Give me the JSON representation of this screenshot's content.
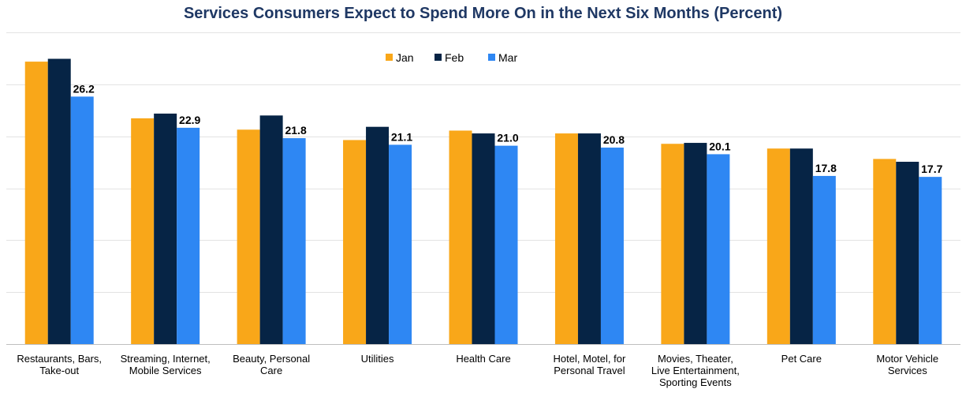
{
  "chart_data": {
    "type": "bar",
    "title": "Services Consumers Expect to Spend More On in the Next Six Months (Percent)",
    "xlabel": "",
    "ylabel": "",
    "categories": [
      [
        "Restaurants, Bars,",
        "Take-out"
      ],
      [
        "Streaming, Internet,",
        "Mobile Services"
      ],
      [
        "Beauty, Personal",
        "Care"
      ],
      [
        "Utilities"
      ],
      [
        "Health Care"
      ],
      [
        "Hotel, Motel, for",
        "Personal Travel"
      ],
      [
        "Movies, Theater,",
        "Live Entertainment,",
        "Sporting Events"
      ],
      [
        "Pet Care"
      ],
      [
        "Motor Vehicle",
        "Services"
      ]
    ],
    "series": [
      {
        "name": "Jan",
        "color": "#F9A719",
        "values": [
          29.9,
          23.9,
          22.7,
          21.6,
          22.6,
          22.3,
          21.2,
          20.7,
          19.6
        ]
      },
      {
        "name": "Feb",
        "color": "#062445",
        "values": [
          30.2,
          24.4,
          24.2,
          23.0,
          22.3,
          22.3,
          21.3,
          20.7,
          19.3
        ]
      },
      {
        "name": "Mar",
        "color": "#2E87F3",
        "values": [
          26.2,
          22.9,
          21.8,
          21.1,
          21.0,
          20.8,
          20.1,
          17.8,
          17.7
        ]
      }
    ],
    "data_labels": [
      "26.2",
      "22.9",
      "21.8",
      "21.1",
      "21.0",
      "20.8",
      "20.1",
      "17.8",
      "17.7"
    ],
    "ylim": [
      0,
      33
    ],
    "grid": true,
    "legend_position": "top-center"
  }
}
